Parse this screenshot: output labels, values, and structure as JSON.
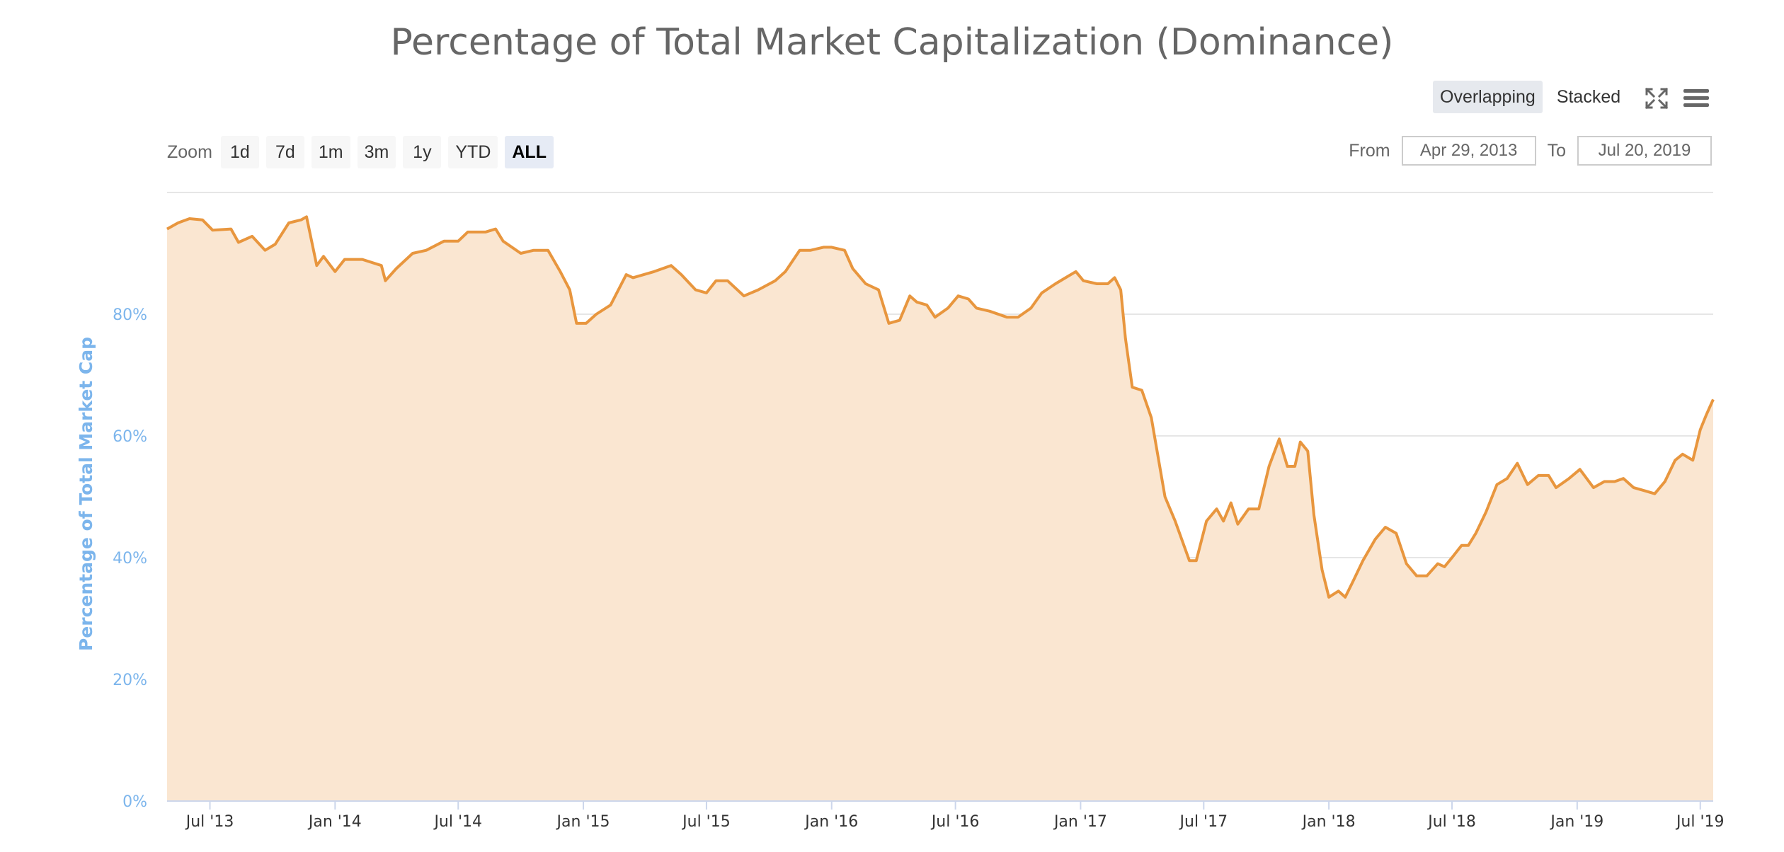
{
  "title": "Percentage of Total Market Capitalization (Dominance)",
  "view_toggle": {
    "overlapping": "Overlapping",
    "stacked": "Stacked"
  },
  "icons": {
    "fullscreen": "fullscreen-icon",
    "menu": "hamburger-menu-icon"
  },
  "zoom": {
    "label": "Zoom",
    "buttons": [
      "1d",
      "7d",
      "1m",
      "3m",
      "1y",
      "YTD",
      "ALL"
    ],
    "active": "ALL"
  },
  "range": {
    "from_label": "From",
    "from_value": "Apr 29, 2013",
    "to_label": "To",
    "to_value": "Jul 20, 2019"
  },
  "colors": {
    "line": "#e8963e",
    "fill": "#fae6d1",
    "axis_label": "#7cb5ec",
    "grid": "#e6e6e6",
    "title": "#666666"
  },
  "chart_data": {
    "type": "area",
    "title": "Percentage of Total Market Capitalization (Dominance)",
    "ylabel": "Percentage of Total Market Cap",
    "xlabel": "",
    "ylim": [
      0,
      100
    ],
    "y_ticks": [
      "0%",
      "20%",
      "40%",
      "60%",
      "80%"
    ],
    "y_tick_values": [
      0,
      20,
      40,
      60,
      80
    ],
    "x_ticks": [
      "Jul '13",
      "Jan '14",
      "Jul '14",
      "Jan '15",
      "Jul '15",
      "Jan '16",
      "Jul '16",
      "Jan '17",
      "Jul '17",
      "Jan '18",
      "Jul '18",
      "Jan '19",
      "Jul '19"
    ],
    "x_tick_dates": [
      "2013-07-01",
      "2014-01-01",
      "2014-07-01",
      "2015-01-01",
      "2015-07-01",
      "2016-01-01",
      "2016-07-01",
      "2017-01-01",
      "2017-07-01",
      "2018-01-01",
      "2018-07-01",
      "2019-01-01",
      "2019-07-01"
    ],
    "xlim": [
      "2013-04-29",
      "2019-07-20"
    ],
    "grid": true,
    "series": [
      {
        "points": [
          [
            "2013-04-29",
            94.0
          ],
          [
            "2013-05-15",
            95.0
          ],
          [
            "2013-06-01",
            95.7
          ],
          [
            "2013-06-20",
            95.5
          ],
          [
            "2013-07-05",
            93.8
          ],
          [
            "2013-08-01",
            94.0
          ],
          [
            "2013-08-12",
            91.8
          ],
          [
            "2013-09-01",
            92.8
          ],
          [
            "2013-09-20",
            90.5
          ],
          [
            "2013-10-05",
            91.5
          ],
          [
            "2013-10-25",
            95.0
          ],
          [
            "2013-11-12",
            95.5
          ],
          [
            "2013-11-20",
            96.0
          ],
          [
            "2013-12-05",
            88.0
          ],
          [
            "2013-12-15",
            89.5
          ],
          [
            "2014-01-01",
            87.0
          ],
          [
            "2014-01-15",
            89.0
          ],
          [
            "2014-02-10",
            89.0
          ],
          [
            "2014-03-10",
            88.0
          ],
          [
            "2014-03-16",
            85.5
          ],
          [
            "2014-04-01",
            87.5
          ],
          [
            "2014-04-25",
            90.0
          ],
          [
            "2014-05-15",
            90.5
          ],
          [
            "2014-06-10",
            92.0
          ],
          [
            "2014-07-01",
            92.0
          ],
          [
            "2014-07-15",
            93.5
          ],
          [
            "2014-08-10",
            93.5
          ],
          [
            "2014-08-25",
            94.0
          ],
          [
            "2014-09-05",
            92.0
          ],
          [
            "2014-10-01",
            90.0
          ],
          [
            "2014-10-20",
            90.5
          ],
          [
            "2014-11-10",
            90.5
          ],
          [
            "2014-11-28",
            87.0
          ],
          [
            "2014-12-12",
            84.0
          ],
          [
            "2014-12-22",
            78.5
          ],
          [
            "2015-01-05",
            78.5
          ],
          [
            "2015-01-20",
            80.0
          ],
          [
            "2015-02-10",
            81.5
          ],
          [
            "2015-03-05",
            86.5
          ],
          [
            "2015-03-15",
            86.0
          ],
          [
            "2015-04-15",
            87.0
          ],
          [
            "2015-05-10",
            88.0
          ],
          [
            "2015-05-25",
            86.5
          ],
          [
            "2015-06-15",
            84.0
          ],
          [
            "2015-07-01",
            83.5
          ],
          [
            "2015-07-15",
            85.5
          ],
          [
            "2015-08-01",
            85.5
          ],
          [
            "2015-08-25",
            83.0
          ],
          [
            "2015-09-15",
            84.0
          ],
          [
            "2015-10-10",
            85.5
          ],
          [
            "2015-10-25",
            87.0
          ],
          [
            "2015-11-15",
            90.5
          ],
          [
            "2015-12-01",
            90.5
          ],
          [
            "2015-12-20",
            91.0
          ],
          [
            "2016-01-01",
            91.0
          ],
          [
            "2016-01-20",
            90.5
          ],
          [
            "2016-02-01",
            87.5
          ],
          [
            "2016-02-20",
            85.0
          ],
          [
            "2016-03-10",
            84.0
          ],
          [
            "2016-03-25",
            78.5
          ],
          [
            "2016-04-10",
            79.0
          ],
          [
            "2016-04-25",
            83.0
          ],
          [
            "2016-05-05",
            82.0
          ],
          [
            "2016-05-20",
            81.5
          ],
          [
            "2016-06-01",
            79.5
          ],
          [
            "2016-06-20",
            81.0
          ],
          [
            "2016-07-05",
            83.0
          ],
          [
            "2016-07-20",
            82.5
          ],
          [
            "2016-08-01",
            81.0
          ],
          [
            "2016-08-20",
            80.5
          ],
          [
            "2016-09-15",
            79.5
          ],
          [
            "2016-10-01",
            79.5
          ],
          [
            "2016-10-20",
            81.0
          ],
          [
            "2016-11-05",
            83.5
          ],
          [
            "2016-11-25",
            85.0
          ],
          [
            "2016-12-10",
            86.0
          ],
          [
            "2016-12-25",
            87.0
          ],
          [
            "2017-01-05",
            85.5
          ],
          [
            "2017-01-25",
            85.0
          ],
          [
            "2017-02-10",
            85.0
          ],
          [
            "2017-02-20",
            86.0
          ],
          [
            "2017-03-01",
            84.0
          ],
          [
            "2017-03-08",
            76.0
          ],
          [
            "2017-03-18",
            68.0
          ],
          [
            "2017-04-01",
            67.5
          ],
          [
            "2017-04-15",
            63.0
          ],
          [
            "2017-05-05",
            50.0
          ],
          [
            "2017-05-20",
            46.0
          ],
          [
            "2017-06-10",
            39.5
          ],
          [
            "2017-06-20",
            39.5
          ],
          [
            "2017-07-05",
            46.0
          ],
          [
            "2017-07-20",
            48.0
          ],
          [
            "2017-07-30",
            46.0
          ],
          [
            "2017-08-10",
            49.0
          ],
          [
            "2017-08-20",
            45.5
          ],
          [
            "2017-09-05",
            48.0
          ],
          [
            "2017-09-20",
            48.0
          ],
          [
            "2017-10-05",
            55.0
          ],
          [
            "2017-10-20",
            59.5
          ],
          [
            "2017-11-01",
            55.0
          ],
          [
            "2017-11-12",
            55.0
          ],
          [
            "2017-11-20",
            59.0
          ],
          [
            "2017-12-01",
            57.5
          ],
          [
            "2017-12-10",
            47.0
          ],
          [
            "2017-12-22",
            38.0
          ],
          [
            "2018-01-01",
            33.5
          ],
          [
            "2018-01-15",
            34.5
          ],
          [
            "2018-01-25",
            33.5
          ],
          [
            "2018-02-05",
            36.0
          ],
          [
            "2018-02-20",
            39.5
          ],
          [
            "2018-03-10",
            43.0
          ],
          [
            "2018-03-25",
            45.0
          ],
          [
            "2018-04-10",
            44.0
          ],
          [
            "2018-04-25",
            39.0
          ],
          [
            "2018-05-10",
            37.0
          ],
          [
            "2018-05-25",
            37.0
          ],
          [
            "2018-06-10",
            39.0
          ],
          [
            "2018-06-20",
            38.5
          ],
          [
            "2018-07-01",
            40.0
          ],
          [
            "2018-07-15",
            42.0
          ],
          [
            "2018-07-25",
            42.0
          ],
          [
            "2018-08-05",
            44.0
          ],
          [
            "2018-08-20",
            47.5
          ],
          [
            "2018-09-05",
            52.0
          ],
          [
            "2018-09-20",
            53.0
          ],
          [
            "2018-10-05",
            55.5
          ],
          [
            "2018-10-20",
            52.0
          ],
          [
            "2018-11-05",
            53.5
          ],
          [
            "2018-11-20",
            53.5
          ],
          [
            "2018-12-01",
            51.5
          ],
          [
            "2018-12-20",
            53.0
          ],
          [
            "2019-01-05",
            54.5
          ],
          [
            "2019-01-25",
            51.5
          ],
          [
            "2019-02-10",
            52.5
          ],
          [
            "2019-02-25",
            52.5
          ],
          [
            "2019-03-10",
            53.0
          ],
          [
            "2019-03-25",
            51.5
          ],
          [
            "2019-04-10",
            51.0
          ],
          [
            "2019-04-25",
            50.5
          ],
          [
            "2019-05-10",
            52.5
          ],
          [
            "2019-05-25",
            56.0
          ],
          [
            "2019-06-05",
            57.0
          ],
          [
            "2019-06-20",
            56.0
          ],
          [
            "2019-07-01",
            61.0
          ],
          [
            "2019-07-10",
            63.5
          ],
          [
            "2019-07-20",
            66.0
          ]
        ]
      }
    ]
  }
}
